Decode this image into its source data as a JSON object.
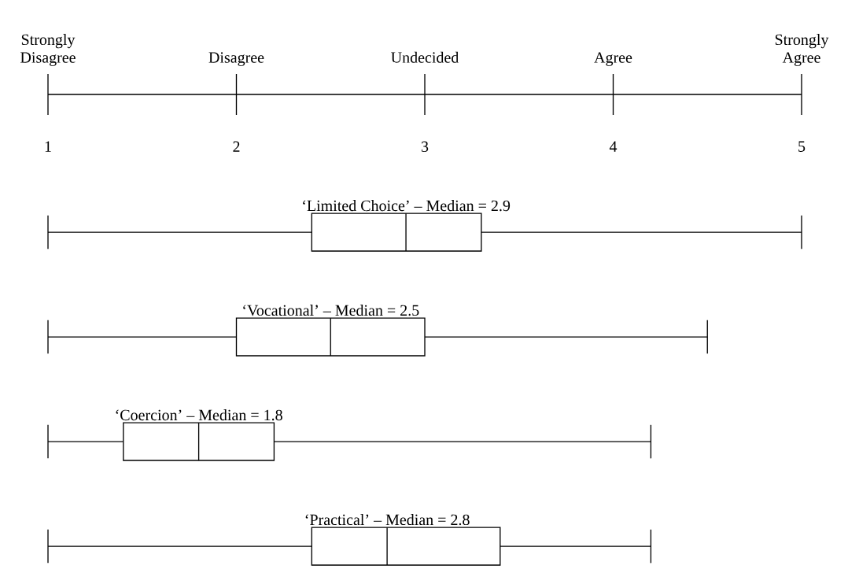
{
  "chart_data": {
    "type": "box",
    "orientation": "horizontal",
    "color": "#000000",
    "categories": [
      "‘Limited Choice’ – Median = 2.9",
      "‘Vocational’ – Median = 2.5",
      "‘Coercion’ – Median = 1.8",
      "‘Practical’ – Median = 2.8"
    ],
    "boxes": [
      {
        "low": 1,
        "q1": 2.4,
        "median": 2.9,
        "q3": 3.3,
        "high": 5
      },
      {
        "low": 1,
        "q1": 2.0,
        "median": 2.5,
        "q3": 3.0,
        "high": 4.5
      },
      {
        "low": 1,
        "q1": 1.4,
        "median": 1.8,
        "q3": 2.2,
        "high": 4.2
      },
      {
        "low": 1,
        "q1": 2.4,
        "median": 2.8,
        "q3": 3.4,
        "high": 4.2
      }
    ],
    "xlim": [
      1,
      5
    ],
    "xticks": [
      1,
      2,
      3,
      4,
      5
    ],
    "annotations": [
      "Strongly Disagree",
      "Disagree",
      "Undecided",
      "Agree",
      "Strongly Agree"
    ]
  }
}
